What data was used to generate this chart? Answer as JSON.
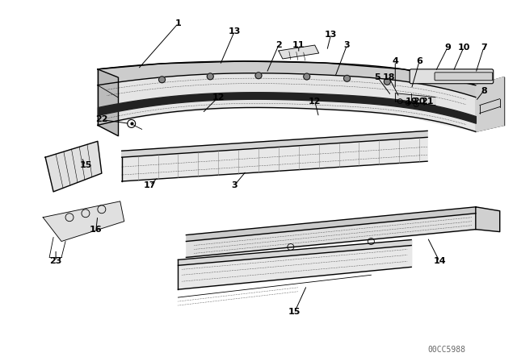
{
  "background_color": "#ffffff",
  "line_color": "#000000",
  "watermark": "00CC5988",
  "fig_width": 6.4,
  "fig_height": 4.48,
  "dpi": 100
}
